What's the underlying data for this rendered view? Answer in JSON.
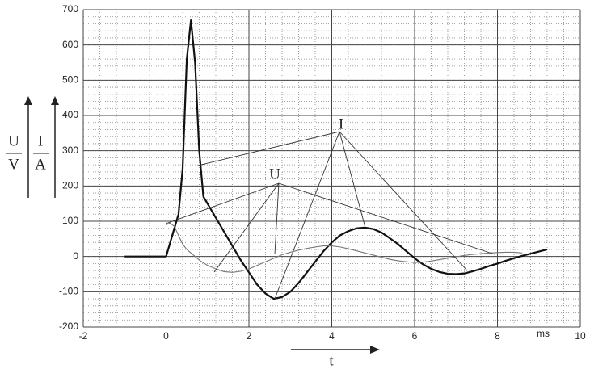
{
  "chart_data": {
    "type": "line",
    "x_label": "t",
    "x_unit": "ms",
    "y_labels": [
      {
        "numerator": "U",
        "denominator": "V"
      },
      {
        "numerator": "I",
        "denominator": "A"
      }
    ],
    "x": [
      -1,
      -0.5,
      0,
      0.1,
      0.2,
      0.3,
      0.4,
      0.5,
      0.6,
      0.7,
      0.8,
      0.9,
      1.0,
      1.2,
      1.4,
      1.6,
      1.8,
      2.0,
      2.2,
      2.4,
      2.6,
      2.8,
      3.0,
      3.2,
      3.4,
      3.6,
      3.8,
      4.0,
      4.2,
      4.4,
      4.6,
      4.8,
      5.0,
      5.2,
      5.4,
      5.6,
      5.8,
      6.0,
      6.2,
      6.4,
      6.6,
      6.8,
      7.0,
      7.2,
      7.4,
      7.6,
      7.8,
      8.0,
      8.2,
      8.4,
      8.6,
      8.8,
      9.0,
      9.2
    ],
    "series": [
      {
        "name": "I",
        "color": "#111111",
        "width": 2.2,
        "values": [
          0,
          0,
          0,
          40,
          80,
          120,
          250,
          560,
          670,
          550,
          300,
          170,
          150,
          110,
          70,
          30,
          -10,
          -45,
          -80,
          -105,
          -120,
          -115,
          -100,
          -75,
          -45,
          -15,
          15,
          40,
          60,
          72,
          80,
          82,
          78,
          68,
          52,
          35,
          15,
          -5,
          -22,
          -35,
          -44,
          -49,
          -50,
          -48,
          -42,
          -35,
          -27,
          -20,
          -12,
          -5,
          2,
          8,
          14,
          20
        ]
      },
      {
        "name": "U",
        "color": "#777777",
        "width": 1.1,
        "values": [
          null,
          null,
          90,
          95,
          85,
          60,
          35,
          20,
          10,
          0,
          -10,
          -18,
          -25,
          -35,
          -43,
          -45,
          -42,
          -35,
          -25,
          -15,
          -5,
          5,
          12,
          18,
          23,
          27,
          30,
          30,
          27,
          22,
          16,
          10,
          4,
          -2,
          -8,
          -12,
          -15,
          -17,
          -16,
          -13,
          -9,
          -5,
          -1,
          3,
          6,
          8,
          10,
          11,
          12,
          12,
          10,
          null,
          null,
          null
        ]
      }
    ],
    "xlim": [
      -2,
      10
    ],
    "xticks": [
      -2,
      0,
      2,
      4,
      6,
      8,
      10
    ],
    "ylim": [
      -200,
      700
    ],
    "yticks": [
      -200,
      -100,
      0,
      100,
      200,
      300,
      400,
      500,
      600,
      700
    ],
    "grid": true
  }
}
